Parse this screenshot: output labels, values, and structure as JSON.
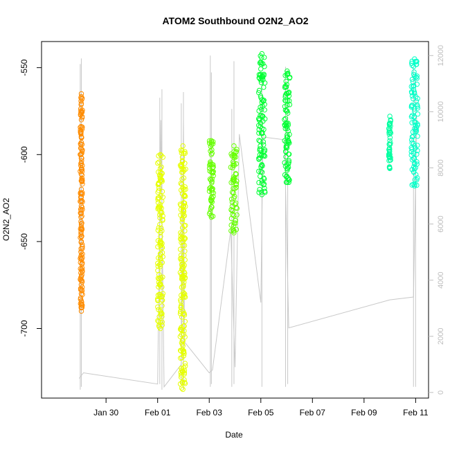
{
  "chart_data": {
    "type": "scatter",
    "title": "ATOM2 Southbound O2N2_AO2",
    "xlabel": "Date",
    "ylabel": "O2N2_AO2",
    "xlim": [
      "2016-01-27T12:00",
      "2016-02-11T12:00"
    ],
    "ylim": [
      -740,
      -535
    ],
    "x_ticks": [
      "Jan 30",
      "Feb 01",
      "Feb 03",
      "Feb 05",
      "Feb 07",
      "Feb 09",
      "Feb 11"
    ],
    "y_ticks": [
      "-550",
      "-600",
      "-650",
      "-700"
    ],
    "y_tick_values": [
      -550,
      -600,
      -650,
      -700
    ],
    "right_axis": {
      "ylim": [
        -200,
        12500
      ],
      "ticks": [
        "0",
        "2000",
        "4000",
        "6000",
        "8000",
        "10000",
        "12000"
      ],
      "tick_values": [
        0,
        2000,
        4000,
        6000,
        8000,
        10000,
        12000
      ],
      "color": "#bdbdbd"
    },
    "grid": false,
    "legend": "none",
    "series": [
      {
        "color": "#ff8c00",
        "date_start": "2016-01-29T00:00",
        "date_end": "2016-01-29T02:00",
        "values": [
          -565,
          -580,
          -590,
          -605,
          -620,
          -640,
          -650,
          -660,
          -670,
          -680,
          -690
        ]
      },
      {
        "color": "#e6ff00",
        "date_start": "2016-02-01T00:00",
        "date_end": "2016-02-01T05:00",
        "values": [
          -600,
          -615,
          -630,
          -645,
          -660,
          -675,
          -690,
          -700
        ]
      },
      {
        "color": "#e6ff00",
        "date_start": "2016-02-01T21:00",
        "date_end": "2016-02-02T02:00",
        "values": [
          -595,
          -610,
          -630,
          -650,
          -670,
          -690,
          -710,
          -725,
          -735
        ]
      },
      {
        "color": "#66ff00",
        "date_start": "2016-02-03T00:00",
        "date_end": "2016-02-03T04:00",
        "values": [
          -592,
          -600,
          -610,
          -620,
          -630,
          -636
        ]
      },
      {
        "color": "#66ff00",
        "date_start": "2016-02-03T20:00",
        "date_end": "2016-02-04T02:00",
        "values": [
          -595,
          -605,
          -615,
          -625,
          -635,
          -645
        ]
      },
      {
        "color": "#00ff33",
        "date_start": "2016-02-04T22:00",
        "date_end": "2016-02-05T04:00",
        "values": [
          -542,
          -555,
          -570,
          -585,
          -600,
          -615,
          -623
        ]
      },
      {
        "color": "#00ff33",
        "date_start": "2016-02-05T22:00",
        "date_end": "2016-02-06T03:00",
        "values": [
          -552,
          -565,
          -575,
          -585,
          -595,
          -608,
          -616
        ]
      },
      {
        "color": "#00ffa0",
        "date_start": "2016-02-09T23:00",
        "date_end": "2016-02-10T01:00",
        "values": [
          -578,
          -585,
          -592,
          -600,
          -608
        ]
      },
      {
        "color": "#00ffc8",
        "date_start": "2016-02-10T20:00",
        "date_end": "2016-02-11T02:00",
        "values": [
          -545,
          -555,
          -565,
          -575,
          -585,
          -595,
          -605,
          -618
        ]
      }
    ],
    "gray_line": {
      "color": "#c8c8c8",
      "axis": "right",
      "x": [
        "2016-01-28T23:00",
        "2016-01-29T03:00",
        "2016-02-01T00:00",
        "2016-02-01T03:00",
        "2016-02-01T06:00",
        "2016-02-01T22:00",
        "2016-02-02T00:00",
        "2016-02-02T01:00",
        "2016-02-03T00:00",
        "2016-02-03T03:00",
        "2016-02-03T20:00",
        "2016-02-04T00:00",
        "2016-02-04T04:00",
        "2016-02-05T00:00",
        "2016-02-05T02:00",
        "2016-02-05T22:00",
        "2016-02-06T02:00",
        "2016-02-10T00:00",
        "2016-02-10T22:00",
        "2016-02-11T01:00"
      ],
      "values": [
        500,
        700,
        300,
        9700,
        200,
        1000,
        9700,
        1800,
        700,
        800,
        5800,
        900,
        9200,
        3200,
        9100,
        9000,
        2300,
        3300,
        3400,
        9800
      ]
    },
    "vertical_spikes": {
      "color": "#c8c8c8",
      "axis": "right",
      "items": [
        {
          "x": "2016-01-29T00:00",
          "low": 100,
          "high": 11700
        },
        {
          "x": "2016-01-29T01:00",
          "low": 200,
          "high": 11900
        },
        {
          "x": "2016-02-01T02:00",
          "low": 300,
          "high": 10500
        },
        {
          "x": "2016-02-01T04:00",
          "low": 100,
          "high": 10800
        },
        {
          "x": "2016-02-01T22:00",
          "low": 300,
          "high": 10300
        },
        {
          "x": "2016-02-02T00:00",
          "low": 100,
          "high": 10700
        },
        {
          "x": "2016-02-03T01:00",
          "low": 200,
          "high": 12000
        },
        {
          "x": "2016-02-03T02:00",
          "low": 300,
          "high": 11400
        },
        {
          "x": "2016-02-03T21:00",
          "low": 200,
          "high": 10100
        },
        {
          "x": "2016-02-03T23:00",
          "low": 300,
          "high": 11800
        },
        {
          "x": "2016-02-05T01:00",
          "low": 200,
          "high": 11300
        },
        {
          "x": "2016-02-05T23:00",
          "low": 200,
          "high": 11600
        },
        {
          "x": "2016-02-06T01:00",
          "low": 300,
          "high": 10900
        },
        {
          "x": "2016-02-10T22:00",
          "low": 200,
          "high": 11600
        },
        {
          "x": "2016-02-11T00:00",
          "low": 200,
          "high": 11200
        }
      ]
    }
  }
}
